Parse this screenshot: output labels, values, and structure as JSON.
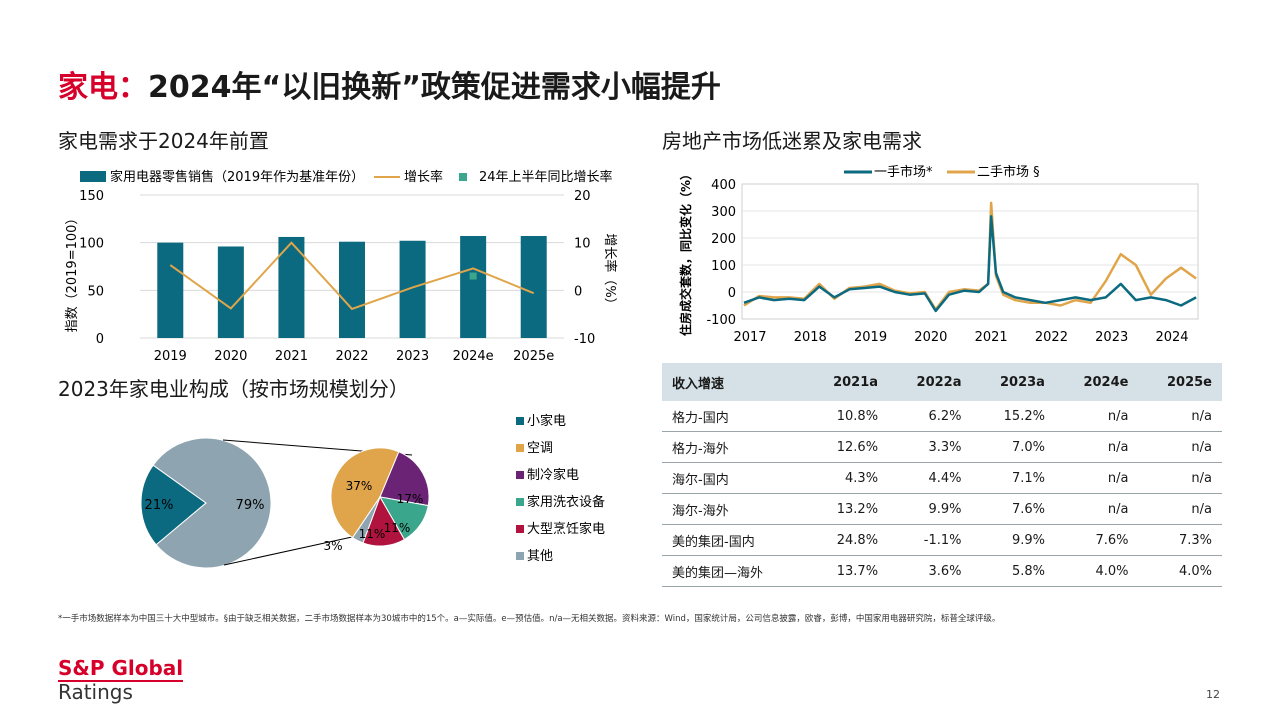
{
  "title": {
    "accent": "家电：",
    "main": "2024年“以旧换新”政策促进需求小幅提升"
  },
  "colors": {
    "teal": "#0b6a80",
    "gold": "#e0a54a",
    "gray": "#8fa4b1",
    "red": "#d6002a",
    "green": "#3aa68c",
    "purple": "#6b2375",
    "crimson": "#b0133d"
  },
  "left_chart": {
    "section_title": "家电需求于2024年前置",
    "legend": {
      "bar": "家用电器零售销售（2019年作为基准年份）",
      "line": "增长率",
      "point": "24年上半年同比增长率"
    },
    "ylabel_left": "指数（2019=100）",
    "ylabel_right": "增长率（%）",
    "yticks_left": [
      "150",
      "100",
      "50",
      "0"
    ],
    "yticks_right": [
      "20",
      "10",
      "0",
      "-10"
    ]
  },
  "right_chart": {
    "section_title": "房地产市场低迷累及家电需求",
    "legend": {
      "s1": "一手市场*",
      "s2": "二手市场 §"
    },
    "ylabel": "住房成交套数，同比变化（%）",
    "yticks": [
      "400",
      "300",
      "200",
      "100",
      "0",
      "-100"
    ],
    "xticks": [
      "2017",
      "2018",
      "2019",
      "2020",
      "2021",
      "2022",
      "2023",
      "2024"
    ]
  },
  "pie_section": {
    "section_title": "2023年家电业构成（按市场规模划分）",
    "main_labels": [
      "21%",
      "79%"
    ],
    "sub_labels": [
      "37%",
      "17%",
      "11%",
      "11%",
      "3%"
    ],
    "legend": [
      "小家电",
      "空调",
      "制冷家电",
      "家用洗衣设备",
      "大型烹饪家电",
      "其他"
    ]
  },
  "chart_data": [
    {
      "type": "bar",
      "categories": [
        "2019",
        "2020",
        "2021",
        "2022",
        "2023",
        "2024e",
        "2025e"
      ],
      "series": [
        {
          "name": "家用电器零售销售（2019年作为基准年份）",
          "axis": "left",
          "type": "bar",
          "values": [
            100,
            96,
            106,
            101,
            102,
            107,
            107
          ]
        },
        {
          "name": "增长率",
          "axis": "right",
          "type": "line",
          "values": [
            5.3,
            -3.8,
            10,
            -3.9,
            0.6,
            4.6,
            -0.6
          ]
        },
        {
          "name": "24年上半年同比增长率",
          "axis": "right",
          "type": "point",
          "values": [
            null,
            null,
            null,
            null,
            null,
            3,
            null
          ]
        }
      ],
      "ylim_left": [
        0,
        150
      ],
      "ylim_right": [
        -10,
        20
      ]
    },
    {
      "type": "line",
      "x": [
        2016.9,
        2017.15,
        2017.4,
        2017.65,
        2017.9,
        2018.15,
        2018.4,
        2018.65,
        2018.9,
        2019.15,
        2019.4,
        2019.65,
        2019.9,
        2020.08,
        2020.3,
        2020.55,
        2020.8,
        2020.95,
        2021.0,
        2021.08,
        2021.2,
        2021.4,
        2021.65,
        2021.9,
        2022.15,
        2022.4,
        2022.65,
        2022.9,
        2023.15,
        2023.4,
        2023.65,
        2023.9,
        2024.15,
        2024.4
      ],
      "series": [
        {
          "name": "一手市场*",
          "values": [
            -40,
            -20,
            -30,
            -25,
            -30,
            20,
            -20,
            10,
            15,
            20,
            0,
            -10,
            -5,
            -70,
            -10,
            5,
            0,
            30,
            280,
            70,
            0,
            -20,
            -30,
            -40,
            -30,
            -20,
            -30,
            -20,
            30,
            -30,
            -20,
            -30,
            -50,
            -20
          ]
        },
        {
          "name": "二手市场 §",
          "values": [
            -50,
            -15,
            -20,
            -20,
            -25,
            30,
            -25,
            15,
            20,
            30,
            5,
            -5,
            0,
            -65,
            0,
            10,
            5,
            30,
            330,
            60,
            -10,
            -30,
            -40,
            -40,
            -50,
            -30,
            -40,
            40,
            140,
            100,
            -10,
            50,
            90,
            50
          ]
        }
      ],
      "ylim": [
        -100,
        400
      ]
    },
    {
      "type": "pie",
      "title": "2023年家电业构成（按市场规模划分）",
      "slices": [
        {
          "label": "小家电",
          "value": 21
        },
        {
          "label": "其他",
          "value": 79
        }
      ]
    },
    {
      "type": "pie",
      "slices": [
        {
          "label": "空调",
          "value": 37
        },
        {
          "label": "制冷家电",
          "value": 17
        },
        {
          "label": "家用洗衣设备",
          "value": 11
        },
        {
          "label": "大型烹饪家电",
          "value": 11
        },
        {
          "label": "其他",
          "value": 3
        }
      ]
    }
  ],
  "table": {
    "headers": [
      "收入增速",
      "2021a",
      "2022a",
      "2023a",
      "2024e",
      "2025e"
    ],
    "rows": [
      [
        "格力-国内",
        "10.8%",
        "6.2%",
        "15.2%",
        "n/a",
        "n/a"
      ],
      [
        "格力-海外",
        "12.6%",
        "3.3%",
        "7.0%",
        "n/a",
        "n/a"
      ],
      [
        "海尔-国内",
        "4.3%",
        "4.4%",
        "7.1%",
        "n/a",
        "n/a"
      ],
      [
        "海尔-海外",
        "13.2%",
        "9.9%",
        "7.6%",
        "n/a",
        "n/a"
      ],
      [
        "美的集团-国内",
        "24.8%",
        "-1.1%",
        "9.9%",
        "7.6%",
        "7.3%"
      ],
      [
        "美的集团—海外",
        "13.7%",
        "3.6%",
        "5.8%",
        "4.0%",
        "4.0%"
      ]
    ]
  },
  "footnote": "*一手市场数据样本为中国三十大中型城市。§由于缺乏相关数据，二手市场数据样本为30城市中的15个。a—实际值。e—预估值。n/a—无相关数据。资料来源：Wind，国家统计局，公司信息披露，欧睿，彭博，中国家用电器研究院，标普全球评级。",
  "footer": {
    "logo_line1": "S&P Global",
    "logo_line2": "Ratings",
    "page": "12"
  }
}
